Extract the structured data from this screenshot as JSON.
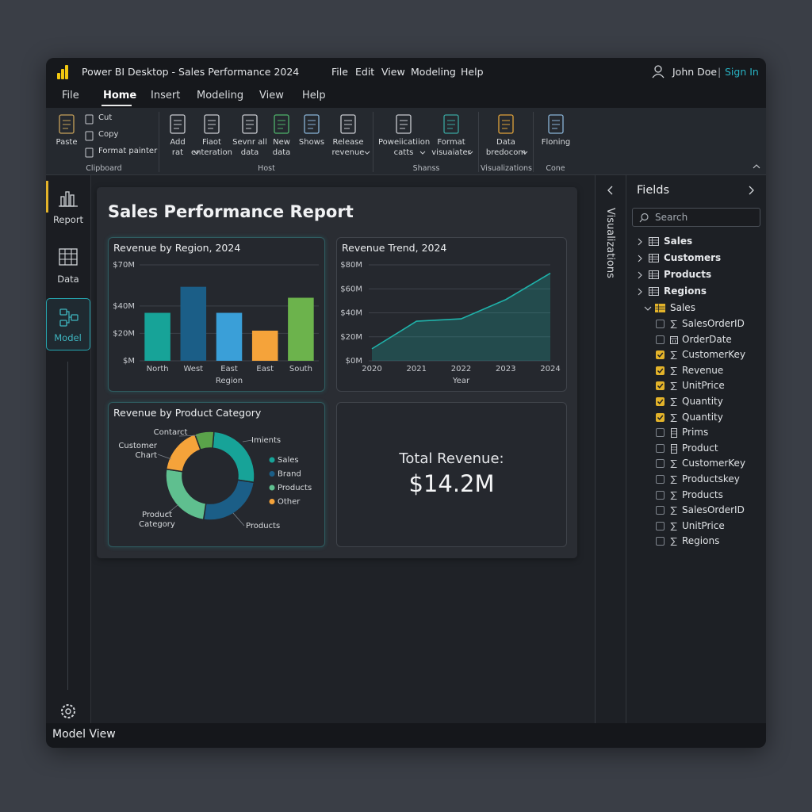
{
  "window": {
    "app_title": "Power BI Desktop - Sales Performance 2024",
    "menu": [
      "File",
      "Edit",
      "View",
      "Modeling",
      "Help"
    ],
    "user": "John Doe",
    "separator": "|",
    "sign_in": "Sign In"
  },
  "tabs": {
    "items": [
      "File",
      "Home",
      "Insert",
      "Modeling",
      "View",
      "Help"
    ],
    "active": 1
  },
  "ribbon": {
    "groups": [
      {
        "label": "Clipboard",
        "buttons": [
          {
            "lines": [
              "Paste"
            ]
          }
        ],
        "small_buttons": [
          "Cut",
          "Copy",
          "Format painter"
        ]
      },
      {
        "label": "Host",
        "buttons": [
          {
            "lines": [
              "Add",
              "rat"
            ],
            "dropdown": true
          },
          {
            "lines": [
              "Fiaot",
              "enteration"
            ]
          },
          {
            "lines": [
              "Sevnr all",
              "data"
            ]
          },
          {
            "lines": [
              "New",
              "data"
            ]
          },
          {
            "lines": [
              "Shows"
            ]
          },
          {
            "lines": [
              "Release",
              "revenue"
            ],
            "dropdown": true
          }
        ]
      },
      {
        "label": "Shanss",
        "buttons": [
          {
            "lines": [
              "Poweiicatiion",
              "catts"
            ],
            "dropdown": true
          },
          {
            "lines": [
              "Format",
              "visuaiater"
            ],
            "dropdown": true
          }
        ]
      },
      {
        "label": "Visualizations",
        "buttons": [
          {
            "lines": [
              "Data",
              "bredocom"
            ],
            "dropdown": true
          }
        ]
      },
      {
        "label": "Cone",
        "buttons": [
          {
            "lines": [
              "Floning"
            ]
          }
        ]
      }
    ]
  },
  "sidebar": {
    "items": [
      "Report",
      "Data",
      "Model"
    ],
    "active": 2
  },
  "report": {
    "title": "Sales Performance Report",
    "card": {
      "label": "Total Revenue:",
      "value": "$14.2M"
    }
  },
  "chart_data": [
    {
      "type": "bar",
      "title": "Revenue by Region, 2024",
      "xlabel": "Region",
      "categories": [
        "North",
        "West",
        "East",
        "East",
        "South"
      ],
      "values": [
        35,
        54,
        35,
        22,
        46
      ],
      "colors": [
        "#17a398",
        "#1b5e87",
        "#3a9fd8",
        "#f5a33a",
        "#6cb34c"
      ],
      "ylim": [
        0,
        70
      ],
      "yticks": [
        {
          "value": 0,
          "label": "$M"
        },
        {
          "value": 20,
          "label": "$20M"
        },
        {
          "value": 40,
          "label": "$40M"
        },
        {
          "value": 70,
          "label": "$70M"
        }
      ],
      "grid": true
    },
    {
      "type": "area",
      "title": "Revenue Trend, 2024",
      "xlabel": "Year",
      "x": [
        2020,
        2021,
        2022,
        2023,
        2024
      ],
      "values": [
        10,
        33,
        35,
        51,
        73
      ],
      "color": "#1fb2aa",
      "xlim": [
        2020,
        2024
      ],
      "xticks": [
        2020,
        2021,
        2022,
        2023,
        2024
      ],
      "ylim": [
        0,
        80
      ],
      "yticks": [
        {
          "value": 0,
          "label": "$0M"
        },
        {
          "value": 20,
          "label": "$20M"
        },
        {
          "value": 40,
          "label": "$40M"
        },
        {
          "value": 60,
          "label": "$60M"
        },
        {
          "value": 80,
          "label": "$80M"
        }
      ],
      "grid": true
    },
    {
      "type": "donut",
      "title": "Revenue by Product Category",
      "categories": [
        "Sales",
        "Brand",
        "Products",
        "Other",
        null
      ],
      "values": [
        26,
        25,
        25,
        17,
        7
      ],
      "colors": [
        "#17a398",
        "#1b5e87",
        "#5fbf8f",
        "#f5a33a",
        "#5aa34a"
      ],
      "annotations": [
        {
          "lines": [
            "Imients"
          ]
        },
        {
          "lines": [
            "Contarct"
          ]
        },
        {
          "lines": [
            "Customer",
            "Chart"
          ]
        },
        {
          "lines": [
            "Product",
            "Category"
          ]
        },
        {
          "lines": [
            "Products"
          ]
        }
      ]
    }
  ],
  "visualizations_pane": {
    "title": "Visualizations"
  },
  "fields_pane": {
    "title": "Fields",
    "search_placeholder": "Search",
    "tables": [
      "Sales",
      "Customers",
      "Products",
      "Regions"
    ],
    "expanded": {
      "name": "Sales",
      "fields": [
        {
          "name": "SalesOrderID",
          "icon": "sigma",
          "checked": false
        },
        {
          "name": "OrderDate",
          "icon": "calendar",
          "checked": false
        },
        {
          "name": "CustomerKey",
          "icon": "sigma",
          "checked": true
        },
        {
          "name": "Revenue",
          "icon": "sigma",
          "checked": true
        },
        {
          "name": "UnitPrice",
          "icon": "sigma",
          "checked": true
        },
        {
          "name": "Quantity",
          "icon": "sigma",
          "checked": true
        },
        {
          "name": "Quantity",
          "icon": "sigma",
          "checked": true
        },
        {
          "name": "Prims",
          "icon": "column",
          "checked": false
        },
        {
          "name": "Product",
          "icon": "column",
          "checked": false
        },
        {
          "name": "CustomerKey",
          "icon": "sigma",
          "checked": false
        },
        {
          "name": "Productskey",
          "icon": "sigma",
          "checked": false
        },
        {
          "name": "Products",
          "icon": "sigma",
          "checked": false
        },
        {
          "name": "SalesOrderID",
          "icon": "sigma",
          "checked": false
        },
        {
          "name": "UnitPrice",
          "icon": "sigma",
          "checked": false
        },
        {
          "name": "Regions",
          "icon": "sigma",
          "checked": false
        }
      ]
    }
  },
  "status_bar": {
    "text": "Model View"
  }
}
